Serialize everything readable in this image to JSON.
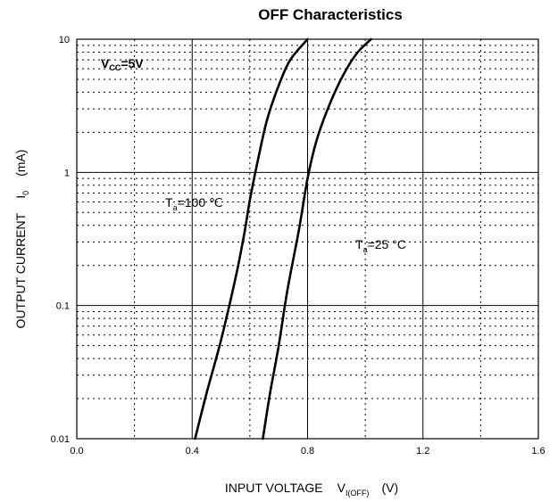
{
  "chart_data": {
    "type": "line",
    "title": "OFF Characteristics",
    "xlabel": {
      "main": "INPUT VOLTAGE",
      "symbol": "V",
      "subscript": "I(OFF)",
      "unit": "(V)"
    },
    "ylabel": {
      "main": "OUTPUT CURRENT",
      "symbol": "I",
      "subscript": "0",
      "unit": "(mA)"
    },
    "xlim": [
      0.0,
      1.6
    ],
    "ylim": [
      0.01,
      10
    ],
    "yscale": "log",
    "grid": true,
    "x_ticks": [
      "0.0",
      "0.4",
      "0.8",
      "1.2",
      "1.6"
    ],
    "y_ticks": [
      "0.01",
      "0.1",
      "1",
      "10"
    ],
    "condition": {
      "symbol": "V",
      "subscript": "CC",
      "value": "=5V"
    },
    "series": [
      {
        "name": "Ta=100 ℃",
        "label": {
          "symbol": "T",
          "subscript": "a",
          "value": "=100 ℃"
        },
        "points": [
          [
            0.41,
            0.01
          ],
          [
            0.45,
            0.022
          ],
          [
            0.5,
            0.055
          ],
          [
            0.55,
            0.16
          ],
          [
            0.58,
            0.34
          ],
          [
            0.6,
            0.62
          ],
          [
            0.63,
            1.3
          ],
          [
            0.66,
            2.5
          ],
          [
            0.7,
            4.5
          ],
          [
            0.74,
            7.0
          ],
          [
            0.8,
            10
          ]
        ]
      },
      {
        "name": "Ta=25 °C",
        "label": {
          "symbol": "T",
          "subscript": "a",
          "value": "=25 °C"
        },
        "points": [
          [
            0.645,
            0.01
          ],
          [
            0.67,
            0.022
          ],
          [
            0.7,
            0.05
          ],
          [
            0.73,
            0.13
          ],
          [
            0.77,
            0.37
          ],
          [
            0.8,
            0.9
          ],
          [
            0.83,
            1.7
          ],
          [
            0.87,
            3.0
          ],
          [
            0.92,
            5.2
          ],
          [
            0.97,
            7.8
          ],
          [
            1.02,
            10
          ]
        ]
      }
    ]
  }
}
